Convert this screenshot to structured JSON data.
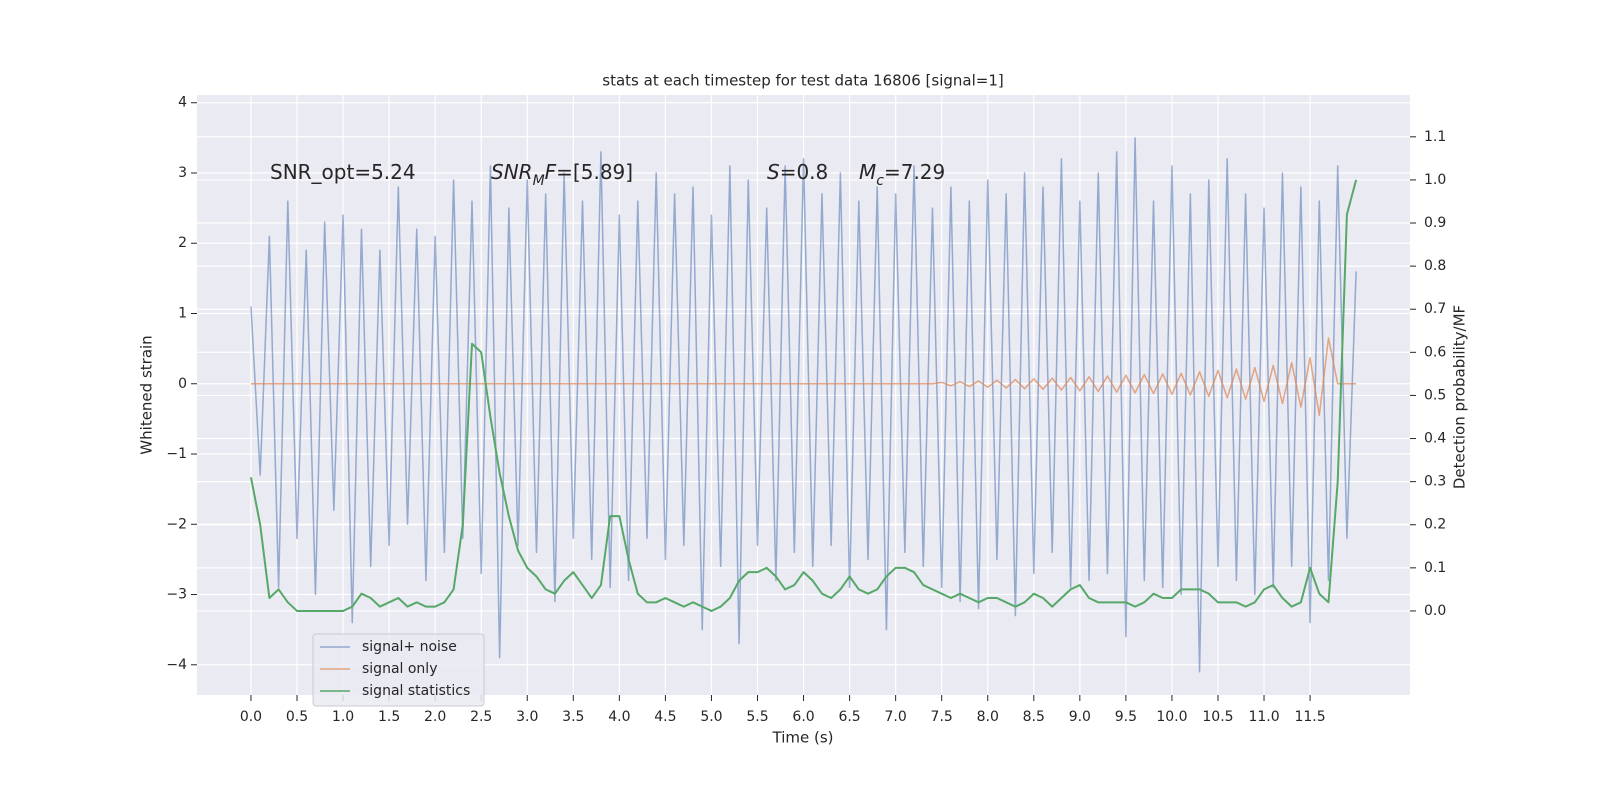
{
  "chart_data": {
    "type": "line",
    "title": "stats at each timestep for test data 16806 [signal=1]",
    "xlabel": "Time (s)",
    "ylabel": "Whitened strain",
    "y2label": "Detection probability/MF",
    "xlim": [
      -0.586,
      12.585
    ],
    "ylim": [
      -4.43,
      4.11
    ],
    "y2lim": [
      -0.195,
      1.197
    ],
    "xticks": [
      {
        "value": 0,
        "label": "0.0"
      },
      0.5,
      {
        "value": 1,
        "label": "1.0"
      },
      1.5,
      {
        "value": 2,
        "label": "2.0"
      },
      2.5,
      {
        "value": 3,
        "label": "3.0"
      },
      3.5,
      {
        "value": 4,
        "label": "4.0"
      },
      4.5,
      {
        "value": 5,
        "label": "5.0"
      },
      5.5,
      {
        "value": 6,
        "label": "6.0"
      },
      6.5,
      {
        "value": 7,
        "label": "7.0"
      },
      7.5,
      {
        "value": 8,
        "label": "8.0"
      },
      8.5,
      {
        "value": 9,
        "label": "9.0"
      },
      9.5,
      {
        "value": 10,
        "label": "10.0"
      },
      10.5,
      {
        "value": 11,
        "label": "11.0"
      },
      11.5
    ],
    "yticks": [
      {
        "value": -4,
        "label": "−4"
      },
      {
        "value": -3,
        "label": "−3"
      },
      {
        "value": -2,
        "label": "−2"
      },
      {
        "value": -1,
        "label": "−1"
      },
      0,
      1,
      2,
      3,
      4
    ],
    "y2ticks": [
      {
        "value": 0,
        "label": "0.0"
      },
      0.1,
      0.2,
      0.3,
      0.4,
      0.5,
      0.6,
      0.7,
      0.8,
      0.9,
      {
        "value": 1,
        "label": "1.0"
      },
      1.1
    ],
    "grid": true,
    "x": [
      0,
      0.1,
      0.2,
      0.3,
      0.4,
      0.5,
      0.6,
      0.7,
      0.8,
      0.9,
      1,
      1.1,
      1.2,
      1.3,
      1.4,
      1.5,
      1.6,
      1.7,
      1.8,
      1.9,
      2,
      2.1,
      2.2,
      2.3,
      2.4,
      2.5,
      2.6,
      2.7,
      2.8,
      2.9,
      3,
      3.1,
      3.2,
      3.3,
      3.4,
      3.5,
      3.6,
      3.7,
      3.8,
      3.9,
      4,
      4.1,
      4.2,
      4.3,
      4.4,
      4.5,
      4.6,
      4.7,
      4.8,
      4.9,
      5,
      5.1,
      5.2,
      5.3,
      5.4,
      5.5,
      5.6,
      5.7,
      5.8,
      5.9,
      6,
      6.1,
      6.2,
      6.3,
      6.4,
      6.5,
      6.6,
      6.7,
      6.8,
      6.9,
      7,
      7.1,
      7.2,
      7.3,
      7.4,
      7.5,
      7.6,
      7.7,
      7.8,
      7.9,
      8,
      8.1,
      8.2,
      8.3,
      8.4,
      8.5,
      8.6,
      8.7,
      8.8,
      8.9,
      9,
      9.1,
      9.2,
      9.3,
      9.4,
      9.5,
      9.6,
      9.7,
      9.8,
      9.9,
      10,
      10.1,
      10.2,
      10.3,
      10.4,
      10.5,
      10.6,
      10.7,
      10.8,
      10.9,
      11,
      11.1,
      11.2,
      11.3,
      11.4,
      11.5,
      11.6,
      11.7,
      11.8,
      11.9,
      12
    ],
    "series": [
      {
        "name": "signal+ noise",
        "color": "#4c72b0",
        "opacity": 0.55,
        "values": [
          1.1,
          -1.3,
          2.1,
          -2.9,
          2.6,
          -2.2,
          1.9,
          -3.0,
          2.3,
          -1.8,
          2.4,
          -3.4,
          2.2,
          -2.6,
          1.9,
          -2.3,
          2.8,
          -2.0,
          2.2,
          -2.8,
          2.1,
          -2.4,
          2.9,
          -2.2,
          2.6,
          -2.7,
          3.1,
          -3.9,
          2.5,
          -2.3,
          2.9,
          -2.4,
          2.7,
          -3.1,
          3.0,
          -2.2,
          2.6,
          -2.5,
          3.3,
          -2.9,
          2.4,
          -2.8,
          2.6,
          -2.2,
          3.0,
          -2.5,
          2.7,
          -2.3,
          2.8,
          -3.5,
          2.4,
          -2.6,
          3.1,
          -3.7,
          2.9,
          -2.3,
          2.5,
          -2.8,
          3.1,
          -2.4,
          3.2,
          -2.6,
          2.7,
          -2.3,
          3.0,
          -2.9,
          2.6,
          -2.5,
          2.8,
          -3.5,
          2.7,
          -2.4,
          3.1,
          -2.6,
          2.5,
          -2.9,
          2.8,
          -3.1,
          2.6,
          -3.2,
          2.9,
          -2.5,
          2.7,
          -3.3,
          3.0,
          -2.7,
          2.8,
          -2.4,
          3.2,
          -2.9,
          2.6,
          -2.8,
          3.0,
          -2.7,
          3.3,
          -3.6,
          3.5,
          -2.8,
          2.6,
          -2.9,
          3.1,
          -3.0,
          2.7,
          -4.1,
          2.9,
          -2.6,
          3.2,
          -2.8,
          2.7,
          -3.0,
          2.5,
          -2.9,
          3.0,
          -2.6,
          2.8,
          -3.4,
          2.6,
          -2.8,
          3.1,
          -2.2,
          1.6
        ]
      },
      {
        "name": "signal only",
        "color": "#dd8452",
        "opacity": 0.7,
        "values": [
          0,
          0,
          0,
          0,
          0,
          0,
          0,
          0,
          0,
          0,
          0,
          0,
          0,
          0,
          0,
          0,
          0,
          0,
          0,
          0,
          0,
          0,
          0,
          0,
          0,
          0,
          0,
          0,
          0,
          0,
          0,
          0,
          0,
          0,
          0,
          0,
          0,
          0,
          0,
          0,
          0,
          0,
          0,
          0,
          0,
          0,
          0,
          0,
          0,
          0,
          0,
          0,
          0,
          0,
          0,
          0,
          0,
          0,
          0,
          0,
          0,
          0,
          0,
          0,
          0,
          0,
          0,
          0,
          0,
          0,
          0,
          0,
          0,
          0,
          0,
          0.02,
          -0.03,
          0.03,
          -0.04,
          0.04,
          -0.05,
          0.05,
          -0.06,
          0.06,
          -0.07,
          0.07,
          -0.08,
          0.08,
          -0.09,
          0.09,
          -0.1,
          0.1,
          -0.11,
          0.11,
          -0.12,
          0.12,
          -0.13,
          0.13,
          -0.14,
          0.14,
          -0.15,
          0.15,
          -0.16,
          0.17,
          -0.18,
          0.19,
          -0.2,
          0.21,
          -0.22,
          0.23,
          -0.25,
          0.26,
          -0.28,
          0.3,
          -0.33,
          0.37,
          -0.45,
          0.65,
          0,
          0,
          0
        ]
      },
      {
        "name": "signal statistics",
        "color": "#55a868",
        "axis": "y2",
        "opacity": 1,
        "values": [
          0.31,
          0.2,
          0.03,
          0.05,
          0.02,
          0.0,
          0.0,
          0.0,
          0.0,
          0.0,
          0.0,
          0.01,
          0.04,
          0.03,
          0.01,
          0.02,
          0.03,
          0.01,
          0.02,
          0.01,
          0.01,
          0.02,
          0.05,
          0.2,
          0.62,
          0.6,
          0.45,
          0.32,
          0.22,
          0.14,
          0.1,
          0.08,
          0.05,
          0.04,
          0.07,
          0.09,
          0.06,
          0.03,
          0.06,
          0.22,
          0.22,
          0.12,
          0.04,
          0.02,
          0.02,
          0.03,
          0.02,
          0.01,
          0.02,
          0.01,
          0.0,
          0.01,
          0.03,
          0.07,
          0.09,
          0.09,
          0.1,
          0.08,
          0.05,
          0.06,
          0.09,
          0.07,
          0.04,
          0.03,
          0.05,
          0.08,
          0.05,
          0.04,
          0.05,
          0.08,
          0.1,
          0.1,
          0.09,
          0.06,
          0.05,
          0.04,
          0.03,
          0.04,
          0.03,
          0.02,
          0.03,
          0.03,
          0.02,
          0.01,
          0.02,
          0.04,
          0.03,
          0.01,
          0.03,
          0.05,
          0.06,
          0.03,
          0.02,
          0.02,
          0.02,
          0.02,
          0.01,
          0.02,
          0.04,
          0.03,
          0.03,
          0.05,
          0.05,
          0.05,
          0.04,
          0.02,
          0.02,
          0.02,
          0.01,
          0.02,
          0.05,
          0.06,
          0.03,
          0.01,
          0.02,
          0.1,
          0.04,
          0.02,
          0.3,
          0.92,
          1.0
        ]
      }
    ],
    "annotations": [
      {
        "parts": [
          {
            "text": "SNR_opt=5.24"
          }
        ]
      },
      {
        "parts": [
          {
            "text": "SNR",
            "italic": true
          },
          {
            "text": "M",
            "italic": true,
            "sub": true
          },
          {
            "text": "F",
            "italic": true
          },
          {
            "text": "=[5.89]"
          }
        ]
      },
      {
        "parts": [
          {
            "text": "S",
            "italic": true
          },
          {
            "text": "=0.8"
          }
        ]
      },
      {
        "parts": [
          {
            "text": "M",
            "italic": true
          },
          {
            "text": "c",
            "italic": true,
            "sub": true
          },
          {
            "text": "=7.29"
          }
        ]
      }
    ]
  }
}
